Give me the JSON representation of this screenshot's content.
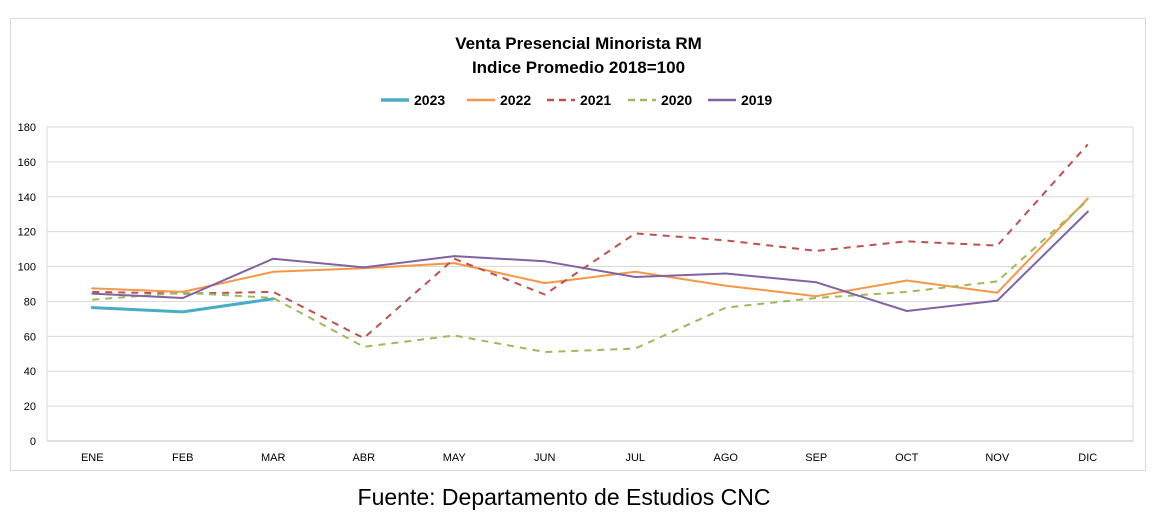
{
  "chart_data": {
    "type": "line",
    "title": "Venta Presencial Minorista RM",
    "subtitle": "Indice Promedio 2018=100",
    "xlabel": "",
    "ylabel": "",
    "categories": [
      "ENE",
      "FEB",
      "MAR",
      "ABR",
      "MAY",
      "JUN",
      "JUL",
      "AGO",
      "SEP",
      "OCT",
      "NOV",
      "DIC"
    ],
    "ylim": [
      0,
      180
    ],
    "yticks": [
      0,
      20,
      40,
      60,
      80,
      100,
      120,
      140,
      160,
      180
    ],
    "grid": true,
    "legend_position": "top",
    "series": [
      {
        "name": "2023",
        "color": "#4bacc6",
        "dashed": false,
        "width": 3,
        "values": [
          76.5,
          74,
          81.5,
          null,
          null,
          null,
          null,
          null,
          null,
          null,
          null,
          null
        ]
      },
      {
        "name": "2022",
        "color": "#f79646",
        "dashed": false,
        "width": 2,
        "values": [
          87.5,
          85.5,
          97,
          99,
          102,
          90.5,
          97,
          89,
          83,
          92,
          85,
          139
        ]
      },
      {
        "name": "2021",
        "color": "#c0504d",
        "dashed": true,
        "width": 2,
        "values": [
          85.5,
          84.5,
          85.5,
          59,
          104.5,
          84,
          119,
          115,
          109,
          114.5,
          112,
          170
        ]
      },
      {
        "name": "2020",
        "color": "#9bbb59",
        "dashed": true,
        "width": 2,
        "values": [
          81,
          85,
          82,
          54,
          60.5,
          51,
          53,
          76.5,
          82,
          85.5,
          91.5,
          138
        ]
      },
      {
        "name": "2019",
        "color": "#8064a2",
        "dashed": false,
        "width": 2,
        "values": [
          84.5,
          82,
          104.5,
          99.5,
          106,
          103,
          94,
          96,
          91,
          74.5,
          80.5,
          131.5
        ]
      }
    ]
  },
  "footer": {
    "source": "Fuente: Departamento de Estudios CNC"
  }
}
